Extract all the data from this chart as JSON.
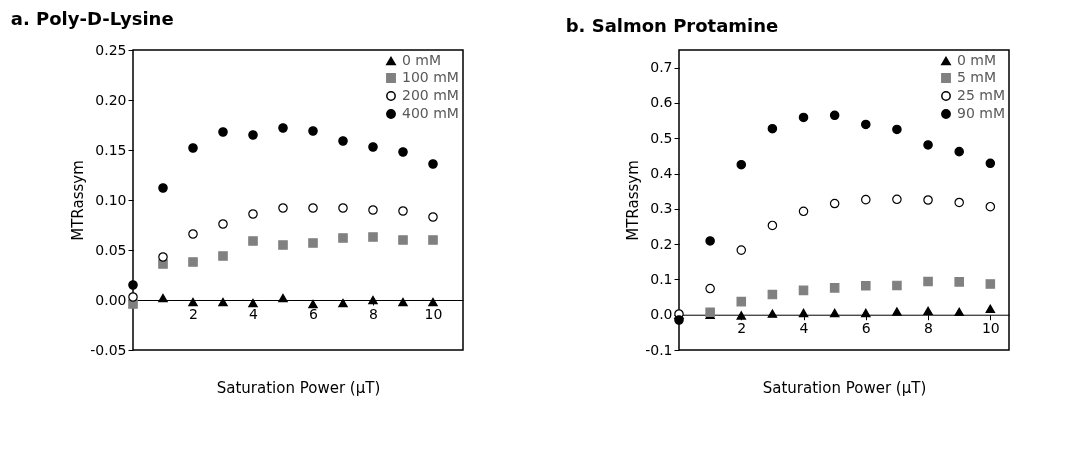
{
  "chart_data": [
    {
      "type": "scatter",
      "title": "a. Poly-D-Lysine",
      "xlabel": "Saturation Power (μT)",
      "ylabel": "MTRassym",
      "x": [
        0,
        1,
        2,
        3,
        4,
        5,
        6,
        7,
        8,
        9,
        10
      ],
      "xlim": [
        0,
        11
      ],
      "xticks": [
        2,
        4,
        6,
        8,
        10
      ],
      "ylim": [
        -0.05,
        0.25
      ],
      "yticks": [
        -0.05,
        {
          "value": 0,
          "label": "0.00"
        },
        0.05,
        {
          "value": 0.1,
          "label": "0.10"
        },
        0.15,
        {
          "value": 0.2,
          "label": "0.20"
        },
        0.25
      ],
      "legend": "top right",
      "grid": false,
      "series": [
        {
          "name": "0 mM",
          "color": "#000000",
          "marker": "triangle",
          "values": [
            null,
            0.002,
            -0.002,
            -0.002,
            -0.003,
            0.002,
            -0.004,
            -0.003,
            0.0,
            -0.002,
            -0.002
          ]
        },
        {
          "name": "100 mM",
          "color": "#808080",
          "marker": "square",
          "values": [
            -0.004,
            0.036,
            0.038,
            0.044,
            0.059,
            0.055,
            0.057,
            0.062,
            0.063,
            0.06,
            0.06
          ]
        },
        {
          "name": "200 mM",
          "color": "#ffffff",
          "marker": "circle",
          "values": [
            0.003,
            0.043,
            0.066,
            0.076,
            0.086,
            0.092,
            0.092,
            0.092,
            0.09,
            0.089,
            0.083
          ]
        },
        {
          "name": "400 mM",
          "color": "#000000",
          "marker": "circle",
          "values": [
            0.015,
            0.112,
            0.152,
            0.168,
            0.165,
            0.172,
            0.169,
            0.159,
            0.153,
            0.148,
            0.136
          ]
        }
      ]
    },
    {
      "type": "scatter",
      "title": "b. Salmon Protamine",
      "xlabel": "Saturation Power (μT)",
      "ylabel": "MTRassym",
      "x": [
        0,
        1,
        2,
        3,
        4,
        5,
        6,
        7,
        8,
        9,
        10
      ],
      "xlim": [
        0,
        10.6
      ],
      "xticks": [
        2,
        4,
        6,
        8,
        10
      ],
      "ylim": [
        -0.1,
        0.75
      ],
      "yticks": [
        -0.1,
        {
          "value": 0,
          "label": "0.0"
        },
        0.1,
        0.2,
        0.3,
        0.4,
        0.5,
        0.6,
        0.7
      ],
      "legend": "top right",
      "grid": false,
      "series": [
        {
          "name": "0 mM",
          "color": "#000000",
          "marker": "triangle",
          "values": [
            0.0,
            0.0,
            -0.002,
            0.003,
            0.005,
            0.005,
            0.005,
            0.009,
            0.011,
            0.008,
            0.017
          ]
        },
        {
          "name": "5 mM",
          "color": "#808080",
          "marker": "square",
          "values": [
            null,
            0.007,
            0.037,
            0.057,
            0.069,
            0.076,
            0.082,
            0.083,
            0.094,
            0.093,
            0.087
          ]
        },
        {
          "name": "25 mM",
          "color": "#ffffff",
          "marker": "circle",
          "values": [
            0.002,
            0.074,
            0.183,
            0.253,
            0.293,
            0.315,
            0.326,
            0.327,
            0.325,
            0.318,
            0.306
          ]
        },
        {
          "name": "90 mM",
          "color": "#000000",
          "marker": "circle",
          "values": [
            -0.015,
            0.209,
            0.425,
            0.527,
            0.559,
            0.565,
            0.539,
            0.525,
            0.481,
            0.462,
            0.429
          ]
        }
      ]
    }
  ]
}
